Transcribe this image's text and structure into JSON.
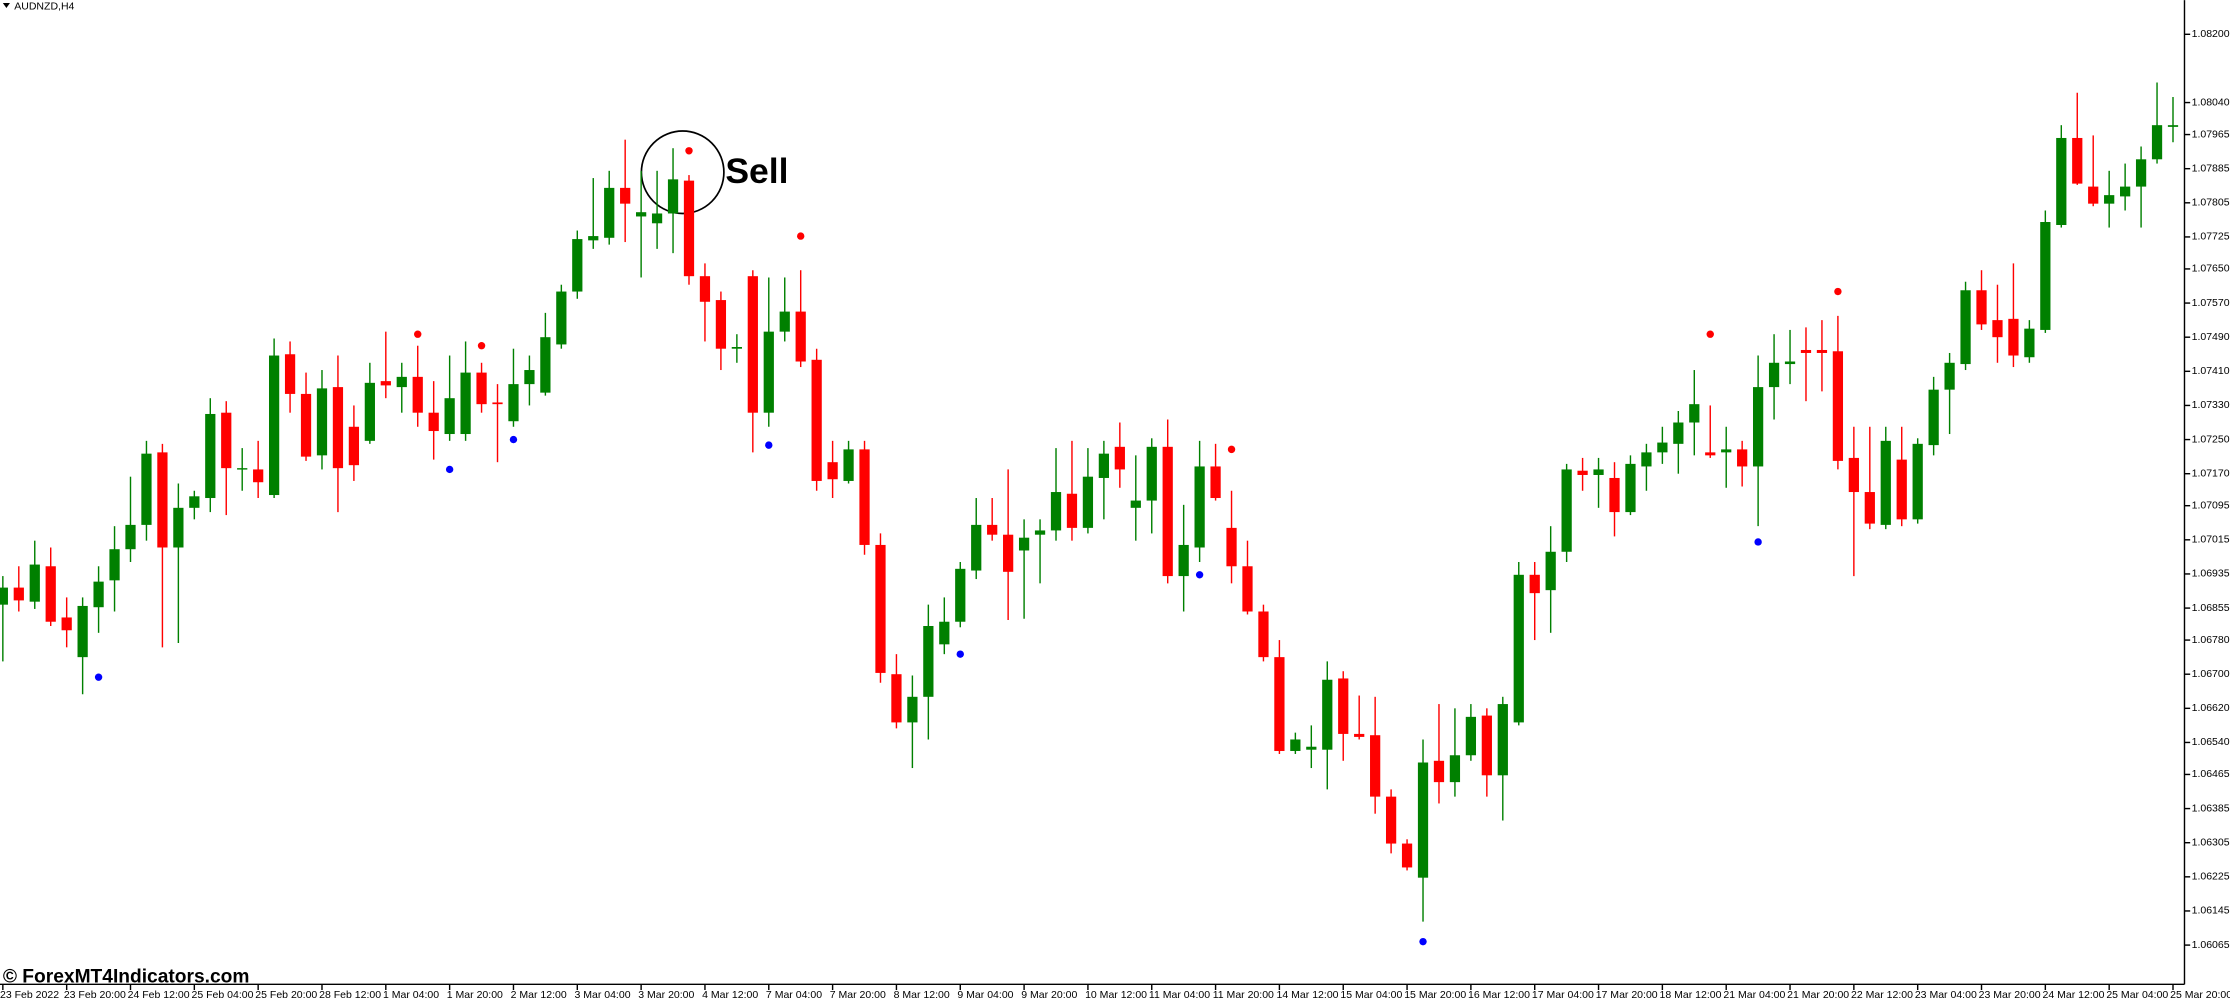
{
  "chart_data": {
    "type": "candlestick",
    "title": "AUDNZD,H4",
    "annotation": "Sell",
    "watermark": "© ForexMT4Indicators.com",
    "up_color": "#008000",
    "down_color": "#ff0000",
    "buy_color": "#0000ff",
    "sell_color": "#ff0000",
    "grid": false,
    "categories": [
      "23 Feb 2022",
      null,
      null,
      null,
      "23 Feb 20:00",
      null,
      null,
      null,
      "24 Feb 12:00",
      null,
      null,
      null,
      "25 Feb 04:00",
      null,
      null,
      null,
      "25 Feb 20:00",
      null,
      null,
      null,
      "28 Feb 12:00",
      null,
      null,
      null,
      "1 Mar 04:00",
      null,
      null,
      null,
      "1 Mar 20:00",
      null,
      null,
      null,
      "2 Mar 12:00",
      null,
      null,
      null,
      "3 Mar 04:00",
      null,
      null,
      null,
      "3 Mar 20:00",
      null,
      null,
      null,
      "4 Mar 12:00",
      null,
      null,
      null,
      "7 Mar 04:00",
      null,
      null,
      null,
      "7 Mar 20:00",
      null,
      null,
      null,
      "8 Mar 12:00",
      null,
      null,
      null,
      "9 Mar 04:00",
      null,
      null,
      null,
      "9 Mar 20:00",
      null,
      null,
      null,
      "10 Mar 12:00",
      null,
      null,
      null,
      "11 Mar 04:00",
      null,
      null,
      null,
      "11 Mar 20:00",
      null,
      null,
      null,
      "14 Mar 12:00",
      null,
      null,
      null,
      "15 Mar 04:00",
      null,
      null,
      null,
      "15 Mar 20:00",
      null,
      null,
      null,
      "16 Mar 12:00",
      null,
      null,
      null,
      "17 Mar 04:00",
      null,
      null,
      null,
      "17 Mar 20:00",
      null,
      null,
      null,
      "18 Mar 12:00",
      null,
      null,
      null,
      "21 Mar 04:00",
      null,
      null,
      null,
      "21 Mar 20:00",
      null,
      null,
      null,
      "22 Mar 12:00",
      null,
      null,
      null,
      "23 Mar 04:00",
      null,
      null,
      null,
      "23 Mar 20:00",
      null,
      null,
      null,
      "24 Mar 12:00",
      null,
      null,
      null,
      "25 Mar 04:00",
      null,
      null,
      null,
      "25 Mar 20:00"
    ],
    "open": [
      1.06863,
      1.06903,
      1.0687,
      1.06953,
      1.06833,
      1.0674,
      1.06857,
      1.0692,
      1.06993,
      1.0705,
      1.0722,
      1.06997,
      1.0709,
      1.07113,
      1.07313,
      1.0718,
      1.0718,
      1.0712,
      1.0745,
      1.07357,
      1.07213,
      1.07373,
      1.0728,
      1.07247,
      1.07387,
      1.07373,
      1.07397,
      1.07313,
      1.07263,
      1.07263,
      1.07407,
      1.07337,
      1.07293,
      1.0738,
      1.0736,
      1.07473,
      1.07597,
      1.07717,
      1.07723,
      1.0784,
      1.07773,
      1.07757,
      1.0778,
      1.07857,
      1.07633,
      1.07577,
      1.07463,
      1.07633,
      1.07313,
      1.07503,
      1.0755,
      1.07437,
      1.07197,
      1.07153,
      1.07227,
      1.07003,
      1.067,
      1.06587,
      1.06647,
      1.0677,
      1.06823,
      1.06943,
      1.0705,
      1.07027,
      1.0699,
      1.07027,
      1.07037,
      1.07123,
      1.07043,
      1.0716,
      1.07233,
      1.0709,
      1.07107,
      1.07233,
      1.0693,
      1.06997,
      1.07187,
      1.07043,
      1.06953,
      1.06847,
      1.0674,
      1.0652,
      1.06523,
      1.06523,
      1.0669,
      1.0656,
      1.06557,
      1.06413,
      1.06303,
      1.06223,
      1.06497,
      1.06447,
      1.0651,
      1.06603,
      1.06463,
      1.06587,
      1.06933,
      1.06897,
      1.06987,
      1.07177,
      1.07167,
      1.0716,
      1.0708,
      1.07187,
      1.0722,
      1.0724,
      1.0729,
      1.0722,
      1.0722,
      1.07227,
      1.07187,
      1.07373,
      1.07427,
      1.0746,
      1.0746,
      1.07457,
      1.07207,
      1.07127,
      1.0705,
      1.07203,
      1.07063,
      1.07237,
      1.07367,
      1.07427,
      1.076,
      1.0753,
      1.07533,
      1.07443,
      1.07507,
      1.07753,
      1.07957,
      1.07843,
      1.07803,
      1.0782,
      1.07843,
      1.07907,
      1.07983
    ],
    "high": [
      1.0693,
      1.06953,
      1.07013,
      1.06997,
      1.0688,
      1.0688,
      1.06953,
      1.07047,
      1.07163,
      1.07247,
      1.0724,
      1.07147,
      1.0713,
      1.07347,
      1.0734,
      1.0723,
      1.07247,
      1.07487,
      1.0748,
      1.07407,
      1.07413,
      1.07447,
      1.0733,
      1.0743,
      1.07503,
      1.0743,
      1.0747,
      1.07387,
      1.07447,
      1.0748,
      1.0743,
      1.0738,
      1.07463,
      1.07447,
      1.07547,
      1.07613,
      1.0774,
      1.07863,
      1.0788,
      1.07953,
      1.0788,
      1.0788,
      1.07933,
      1.0787,
      1.07663,
      1.07597,
      1.07497,
      1.07647,
      1.0763,
      1.0763,
      1.07647,
      1.07463,
      1.07247,
      1.07247,
      1.07247,
      1.0703,
      1.06747,
      1.06697,
      1.06863,
      1.0688,
      1.06963,
      1.07113,
      1.07113,
      1.0718,
      1.07063,
      1.07063,
      1.0723,
      1.07247,
      1.0723,
      1.07247,
      1.0729,
      1.07213,
      1.07253,
      1.07297,
      1.07097,
      1.07247,
      1.0724,
      1.0713,
      1.07013,
      1.06863,
      1.0678,
      1.06563,
      1.0658,
      1.0673,
      1.06707,
      1.0665,
      1.06647,
      1.0643,
      1.06313,
      1.06547,
      1.0663,
      1.0662,
      1.0663,
      1.0662,
      1.06647,
      1.06963,
      1.06963,
      1.07047,
      1.07193,
      1.07207,
      1.07207,
      1.07197,
      1.07213,
      1.0724,
      1.0728,
      1.07317,
      1.07413,
      1.0733,
      1.0728,
      1.07247,
      1.07447,
      1.07497,
      1.07507,
      1.07513,
      1.0753,
      1.0754,
      1.0728,
      1.0728,
      1.0728,
      1.0728,
      1.07253,
      1.07397,
      1.07453,
      1.0762,
      1.07647,
      1.07613,
      1.07663,
      1.0753,
      1.07787,
      1.07987,
      1.08063,
      1.07963,
      1.0788,
      1.07897,
      1.07937,
      1.08087,
      1.08053
    ],
    "low": [
      1.0673,
      1.06847,
      1.06853,
      1.06813,
      1.06763,
      1.06653,
      1.06797,
      1.06847,
      1.06963,
      1.07013,
      1.06763,
      1.06773,
      1.07063,
      1.0708,
      1.07073,
      1.0713,
      1.07113,
      1.07113,
      1.07313,
      1.072,
      1.0718,
      1.0708,
      1.07153,
      1.0724,
      1.07347,
      1.07313,
      1.0728,
      1.07203,
      1.07247,
      1.07247,
      1.07313,
      1.07197,
      1.0728,
      1.0733,
      1.07353,
      1.07463,
      1.0758,
      1.07697,
      1.07707,
      1.07713,
      1.0763,
      1.07697,
      1.07687,
      1.07613,
      1.0748,
      1.07413,
      1.0743,
      1.0722,
      1.0728,
      1.0748,
      1.0742,
      1.0713,
      1.07113,
      1.07147,
      1.0698,
      1.0668,
      1.06573,
      1.0648,
      1.06547,
      1.06747,
      1.0681,
      1.06923,
      1.07013,
      1.06827,
      1.0683,
      1.06913,
      1.07013,
      1.07013,
      1.0703,
      1.07063,
      1.07137,
      1.07013,
      1.0703,
      1.06913,
      1.06847,
      1.06963,
      1.07107,
      1.06913,
      1.0684,
      1.0673,
      1.06513,
      1.06513,
      1.0648,
      1.0643,
      1.06497,
      1.06547,
      1.06373,
      1.0628,
      1.0624,
      1.0612,
      1.06397,
      1.06413,
      1.06497,
      1.06413,
      1.06357,
      1.0658,
      1.0678,
      1.06797,
      1.06963,
      1.0713,
      1.0709,
      1.07023,
      1.07073,
      1.0713,
      1.07193,
      1.0717,
      1.07213,
      1.07207,
      1.07137,
      1.0714,
      1.07047,
      1.07297,
      1.0738,
      1.0734,
      1.07363,
      1.0718,
      1.0693,
      1.0704,
      1.0704,
      1.07047,
      1.07053,
      1.07213,
      1.07263,
      1.07413,
      1.07507,
      1.0743,
      1.0742,
      1.0743,
      1.075,
      1.07747,
      1.07847,
      1.07797,
      1.07747,
      1.07787,
      1.07747,
      1.07897,
      1.07947
    ],
    "close": [
      1.06903,
      1.06873,
      1.06957,
      1.06823,
      1.06803,
      1.0686,
      1.06917,
      1.06993,
      1.0705,
      1.07217,
      1.06997,
      1.0709,
      1.07117,
      1.0731,
      1.07183,
      1.07183,
      1.0715,
      1.07447,
      1.07357,
      1.0721,
      1.0737,
      1.07183,
      1.0719,
      1.07383,
      1.07377,
      1.07397,
      1.07313,
      1.0727,
      1.07347,
      1.07407,
      1.07333,
      1.07333,
      1.0738,
      1.07413,
      1.0749,
      1.07597,
      1.0772,
      1.07727,
      1.0784,
      1.07803,
      1.07783,
      1.0778,
      1.0786,
      1.07633,
      1.07573,
      1.07463,
      1.07467,
      1.07313,
      1.07503,
      1.0755,
      1.07433,
      1.07153,
      1.07157,
      1.07227,
      1.07003,
      1.06703,
      1.06587,
      1.06647,
      1.06813,
      1.06823,
      1.06947,
      1.0705,
      1.07027,
      1.0694,
      1.0702,
      1.07037,
      1.07127,
      1.07043,
      1.07163,
      1.07217,
      1.0718,
      1.07107,
      1.07233,
      1.0693,
      1.07003,
      1.07187,
      1.07113,
      1.06953,
      1.06847,
      1.0674,
      1.0652,
      1.06547,
      1.0653,
      1.06687,
      1.0656,
      1.06553,
      1.06413,
      1.06303,
      1.06247,
      1.06493,
      1.06447,
      1.0651,
      1.066,
      1.06463,
      1.0663,
      1.06933,
      1.0689,
      1.06987,
      1.0718,
      1.07167,
      1.0718,
      1.0708,
      1.07193,
      1.0722,
      1.07243,
      1.0729,
      1.07333,
      1.07213,
      1.07227,
      1.07187,
      1.07373,
      1.0743,
      1.07433,
      1.07453,
      1.07453,
      1.072,
      1.07127,
      1.07053,
      1.07247,
      1.07063,
      1.0724,
      1.07367,
      1.0743,
      1.076,
      1.0752,
      1.0749,
      1.07447,
      1.0751,
      1.0776,
      1.07957,
      1.0785,
      1.07803,
      1.07823,
      1.07843,
      1.07907,
      1.07987,
      1.07987
    ],
    "buy_signals": [
      null,
      null,
      null,
      null,
      null,
      null,
      1.06693,
      null,
      null,
      null,
      null,
      null,
      null,
      null,
      null,
      null,
      null,
      null,
      null,
      null,
      null,
      null,
      null,
      null,
      null,
      null,
      null,
      null,
      1.0718,
      null,
      null,
      null,
      1.0725,
      null,
      null,
      null,
      null,
      null,
      null,
      null,
      null,
      null,
      null,
      null,
      null,
      null,
      null,
      null,
      1.07237,
      null,
      null,
      null,
      null,
      null,
      null,
      null,
      null,
      null,
      null,
      null,
      1.06747,
      null,
      null,
      null,
      null,
      null,
      null,
      null,
      null,
      null,
      null,
      null,
      null,
      null,
      null,
      1.06933,
      null,
      null,
      null,
      null,
      null,
      null,
      null,
      null,
      null,
      null,
      null,
      null,
      null,
      1.06073,
      null,
      null,
      null,
      null,
      null,
      null,
      null,
      null,
      null,
      null,
      null,
      null,
      null,
      null,
      null,
      null,
      null,
      null,
      null,
      null,
      1.0701,
      null,
      null,
      null,
      null,
      null,
      null,
      null,
      null,
      null,
      null,
      null,
      null,
      null,
      null,
      null,
      null,
      null,
      null,
      null,
      null,
      null,
      null,
      null,
      null,
      null,
      null
    ],
    "sell_signals": [
      null,
      null,
      null,
      null,
      null,
      null,
      null,
      null,
      null,
      null,
      null,
      null,
      null,
      null,
      null,
      null,
      null,
      null,
      null,
      null,
      null,
      null,
      null,
      null,
      null,
      null,
      1.07497,
      null,
      null,
      null,
      1.0747,
      null,
      null,
      null,
      null,
      null,
      null,
      null,
      null,
      null,
      null,
      null,
      null,
      1.07927,
      null,
      null,
      null,
      null,
      null,
      null,
      1.07727,
      null,
      null,
      null,
      null,
      null,
      null,
      null,
      null,
      null,
      null,
      null,
      null,
      null,
      null,
      null,
      null,
      null,
      null,
      null,
      null,
      null,
      null,
      null,
      null,
      null,
      null,
      1.07227,
      null,
      null,
      null,
      null,
      null,
      null,
      null,
      null,
      null,
      null,
      null,
      null,
      null,
      null,
      null,
      null,
      null,
      null,
      null,
      null,
      null,
      null,
      null,
      null,
      null,
      null,
      null,
      null,
      null,
      1.07497,
      null,
      null,
      null,
      null,
      null,
      null,
      null,
      1.07597,
      null,
      null,
      null,
      null,
      null,
      null,
      null,
      null,
      null,
      null,
      null,
      null,
      null,
      null,
      null,
      null,
      null,
      null,
      null,
      null,
      null
    ],
    "ylim": [
      1.05973,
      1.0828
    ],
    "yticks": [
      {
        "value": 1.082,
        "label": "1.08200"
      },
      {
        "value": 1.0804,
        "label": "1.08040"
      },
      {
        "value": 1.07965,
        "label": "1.07965"
      },
      {
        "value": 1.07885,
        "label": "1.07885"
      },
      {
        "value": 1.07805,
        "label": "1.07805"
      },
      {
        "value": 1.07725,
        "label": "1.07725"
      },
      {
        "value": 1.0765,
        "label": "1.07650"
      },
      {
        "value": 1.0757,
        "label": "1.07570"
      },
      {
        "value": 1.0749,
        "label": "1.07490"
      },
      {
        "value": 1.0741,
        "label": "1.07410"
      },
      {
        "value": 1.0733,
        "label": "1.07330"
      },
      {
        "value": 1.0725,
        "label": "1.07250"
      },
      {
        "value": 1.0717,
        "label": "1.07170"
      },
      {
        "value": 1.07095,
        "label": "1.07095"
      },
      {
        "value": 1.07015,
        "label": "1.07015"
      },
      {
        "value": 1.06935,
        "label": "1.06935"
      },
      {
        "value": 1.06855,
        "label": "1.06855"
      },
      {
        "value": 1.0678,
        "label": "1.06780"
      },
      {
        "value": 1.067,
        "label": "1.06700"
      },
      {
        "value": 1.0662,
        "label": "1.06620"
      },
      {
        "value": 1.0654,
        "label": "1.06540"
      },
      {
        "value": 1.06465,
        "label": "1.06465"
      },
      {
        "value": 1.06385,
        "label": "1.06385"
      },
      {
        "value": 1.06305,
        "label": "1.06305"
      },
      {
        "value": 1.06225,
        "label": "1.06225"
      },
      {
        "value": 1.06145,
        "label": "1.06145"
      },
      {
        "value": 1.06065,
        "label": "1.06065"
      }
    ]
  }
}
